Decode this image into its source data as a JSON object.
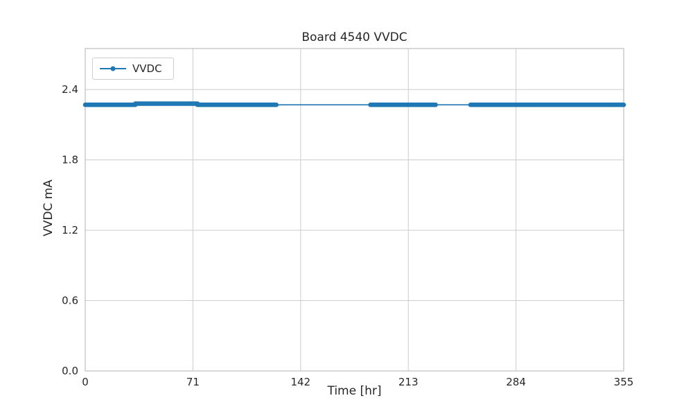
{
  "chart_data": {
    "type": "line",
    "title": "Board 4540 VVDC",
    "xlabel": "Time [hr]",
    "ylabel": "VVDC mA",
    "xlim": [
      0,
      355
    ],
    "ylim": [
      0,
      2.75
    ],
    "xticks": [
      0,
      71,
      142,
      213,
      284,
      355
    ],
    "yticks": [
      0,
      0.6,
      1.2,
      1.8,
      2.4
    ],
    "grid": true,
    "legend": {
      "position": "upper-left",
      "entries": [
        "VVDC"
      ]
    },
    "colors": {
      "line": "#1f77b4",
      "grid": "#cccccc",
      "spine": "#c4c4c4",
      "text": "#262626"
    },
    "series": [
      {
        "name": "VVDC",
        "color": "#1f77b4",
        "marker": "point",
        "approx_constant_value": 2.27,
        "dense_segments": [
          {
            "x": [
              0,
              33
            ],
            "y": 2.27
          },
          {
            "x": [
              33,
              74
            ],
            "y": 2.28
          },
          {
            "x": [
              74,
              126
            ],
            "y": 2.27
          },
          {
            "x": [
              188,
              231
            ],
            "y": 2.27
          },
          {
            "x": [
              254,
              355
            ],
            "y": 2.27
          }
        ],
        "sparse_segments": [
          {
            "x": [
              126,
              188
            ],
            "y": 2.27
          },
          {
            "x": [
              231,
              254
            ],
            "y": 2.27
          }
        ]
      }
    ]
  }
}
